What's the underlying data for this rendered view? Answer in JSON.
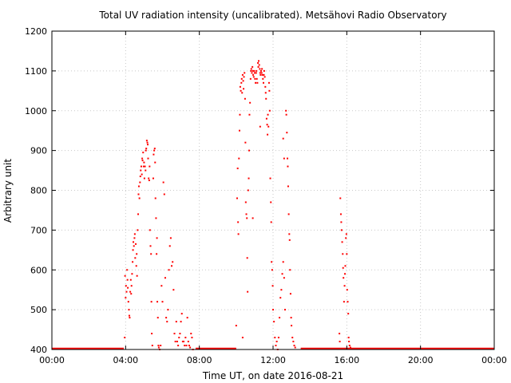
{
  "chart_data": {
    "type": "scatter",
    "title": "Total UV radiation intensity (uncalibrated). Metsähovi Radio Observatory",
    "xlabel": "Time UT, on date 2016-08-21",
    "ylabel": "Arbitrary unit",
    "xlim": [
      0,
      24
    ],
    "ylim": [
      400,
      1200
    ],
    "x_unit": "hours UT",
    "xticks": [
      0,
      4,
      8,
      12,
      16,
      20,
      24
    ],
    "xtick_labels": [
      "00:00",
      "04:00",
      "08:00",
      "12:00",
      "16:00",
      "20:00",
      "00:00"
    ],
    "yticks": [
      400,
      500,
      600,
      700,
      800,
      900,
      1000,
      1100,
      1200
    ],
    "ytick_labels": [
      "400",
      "500",
      "600",
      "700",
      "800",
      "900",
      "1000",
      "1100",
      "1200"
    ],
    "grid": true,
    "color": "#ff0000",
    "baseline": {
      "value": 400,
      "ranges": [
        [
          0,
          3.9
        ],
        [
          7.8,
          10.0
        ],
        [
          13.5,
          24
        ]
      ]
    },
    "points": [
      [
        3.95,
        430
      ],
      [
        3.97,
        585
      ],
      [
        4.0,
        530
      ],
      [
        4.02,
        560
      ],
      [
        4.05,
        545
      ],
      [
        4.08,
        600
      ],
      [
        4.1,
        575
      ],
      [
        4.12,
        555
      ],
      [
        4.15,
        520
      ],
      [
        4.18,
        500
      ],
      [
        4.2,
        485
      ],
      [
        4.22,
        480
      ],
      [
        4.25,
        545
      ],
      [
        4.28,
        575
      ],
      [
        4.3,
        540
      ],
      [
        4.32,
        560
      ],
      [
        4.35,
        590
      ],
      [
        4.38,
        620
      ],
      [
        4.4,
        650
      ],
      [
        4.42,
        670
      ],
      [
        4.45,
        660
      ],
      [
        4.48,
        680
      ],
      [
        4.5,
        690
      ],
      [
        4.52,
        630
      ],
      [
        4.55,
        665
      ],
      [
        4.58,
        610
      ],
      [
        4.6,
        640
      ],
      [
        4.62,
        585
      ],
      [
        4.65,
        700
      ],
      [
        4.68,
        740
      ],
      [
        4.7,
        790
      ],
      [
        4.72,
        810
      ],
      [
        4.75,
        780
      ],
      [
        4.78,
        820
      ],
      [
        4.8,
        835
      ],
      [
        4.82,
        850
      ],
      [
        4.85,
        860
      ],
      [
        4.88,
        840
      ],
      [
        4.9,
        880
      ],
      [
        4.92,
        875
      ],
      [
        4.95,
        895
      ],
      [
        4.98,
        860
      ],
      [
        5.0,
        870
      ],
      [
        5.02,
        830
      ],
      [
        5.05,
        860
      ],
      [
        5.08,
        850
      ],
      [
        5.1,
        900
      ],
      [
        5.12,
        905
      ],
      [
        5.15,
        925
      ],
      [
        5.18,
        920
      ],
      [
        5.2,
        915
      ],
      [
        5.22,
        880
      ],
      [
        5.25,
        830
      ],
      [
        5.28,
        825
      ],
      [
        5.3,
        860
      ],
      [
        5.32,
        700
      ],
      [
        5.35,
        660
      ],
      [
        5.38,
        640
      ],
      [
        5.4,
        520
      ],
      [
        5.42,
        440
      ],
      [
        5.45,
        410
      ],
      [
        5.5,
        830
      ],
      [
        5.52,
        890
      ],
      [
        5.55,
        900
      ],
      [
        5.58,
        905
      ],
      [
        5.6,
        870
      ],
      [
        5.62,
        780
      ],
      [
        5.65,
        730
      ],
      [
        5.68,
        640
      ],
      [
        5.7,
        680
      ],
      [
        5.72,
        520
      ],
      [
        5.75,
        480
      ],
      [
        5.78,
        410
      ],
      [
        5.8,
        405
      ],
      [
        5.85,
        400
      ],
      [
        5.9,
        410
      ],
      [
        5.95,
        560
      ],
      [
        6.0,
        520
      ],
      [
        6.05,
        820
      ],
      [
        6.1,
        790
      ],
      [
        6.15,
        580
      ],
      [
        6.2,
        480
      ],
      [
        6.25,
        470
      ],
      [
        6.3,
        500
      ],
      [
        6.35,
        600
      ],
      [
        6.4,
        660
      ],
      [
        6.45,
        680
      ],
      [
        6.5,
        610
      ],
      [
        6.55,
        620
      ],
      [
        6.6,
        550
      ],
      [
        6.65,
        440
      ],
      [
        6.7,
        420
      ],
      [
        6.75,
        470
      ],
      [
        6.8,
        420
      ],
      [
        6.85,
        410
      ],
      [
        6.9,
        430
      ],
      [
        6.95,
        440
      ],
      [
        7.0,
        470
      ],
      [
        7.05,
        490
      ],
      [
        7.1,
        420
      ],
      [
        7.15,
        420
      ],
      [
        7.2,
        410
      ],
      [
        7.25,
        430
      ],
      [
        7.3,
        410
      ],
      [
        7.35,
        480
      ],
      [
        7.4,
        420
      ],
      [
        7.45,
        410
      ],
      [
        7.5,
        405
      ],
      [
        7.55,
        440
      ],
      [
        7.6,
        430
      ],
      [
        7.65,
        400
      ],
      [
        10.0,
        460
      ],
      [
        10.05,
        780
      ],
      [
        10.08,
        855
      ],
      [
        10.1,
        720
      ],
      [
        10.12,
        690
      ],
      [
        10.15,
        880
      ],
      [
        10.18,
        950
      ],
      [
        10.2,
        990
      ],
      [
        10.22,
        1060
      ],
      [
        10.25,
        1050
      ],
      [
        10.28,
        1070
      ],
      [
        10.3,
        1080
      ],
      [
        10.32,
        1045
      ],
      [
        10.35,
        1090
      ],
      [
        10.38,
        1075
      ],
      [
        10.4,
        1055
      ],
      [
        10.42,
        1085
      ],
      [
        10.45,
        1095
      ],
      [
        10.48,
        1030
      ],
      [
        10.5,
        920
      ],
      [
        10.52,
        770
      ],
      [
        10.55,
        740
      ],
      [
        10.58,
        730
      ],
      [
        10.6,
        630
      ],
      [
        10.62,
        545
      ],
      [
        10.65,
        800
      ],
      [
        10.68,
        830
      ],
      [
        10.7,
        900
      ],
      [
        10.72,
        990
      ],
      [
        10.75,
        1020
      ],
      [
        10.78,
        1080
      ],
      [
        10.8,
        1100
      ],
      [
        10.82,
        1105
      ],
      [
        10.85,
        1095
      ],
      [
        10.88,
        1110
      ],
      [
        10.9,
        1100
      ],
      [
        10.92,
        1090
      ],
      [
        10.95,
        1085
      ],
      [
        10.98,
        1100
      ],
      [
        11.0,
        1095
      ],
      [
        11.02,
        1080
      ],
      [
        11.05,
        1070
      ],
      [
        11.08,
        1095
      ],
      [
        11.1,
        1100
      ],
      [
        11.12,
        1080
      ],
      [
        11.15,
        1070
      ],
      [
        11.18,
        1120
      ],
      [
        11.2,
        1110
      ],
      [
        11.22,
        1125
      ],
      [
        11.25,
        1115
      ],
      [
        11.28,
        1105
      ],
      [
        11.3,
        1095
      ],
      [
        11.32,
        1090
      ],
      [
        11.35,
        1100
      ],
      [
        11.38,
        1095
      ],
      [
        11.4,
        1105
      ],
      [
        11.42,
        1090
      ],
      [
        11.45,
        1080
      ],
      [
        11.48,
        1070
      ],
      [
        11.5,
        1090
      ],
      [
        11.52,
        1100
      ],
      [
        11.55,
        1085
      ],
      [
        11.58,
        1060
      ],
      [
        11.6,
        1045
      ],
      [
        11.62,
        1030
      ],
      [
        11.65,
        980
      ],
      [
        11.68,
        965
      ],
      [
        11.7,
        940
      ],
      [
        11.72,
        990
      ],
      [
        11.75,
        960
      ],
      [
        11.78,
        1070
      ],
      [
        11.8,
        1050
      ],
      [
        11.82,
        1000
      ],
      [
        11.85,
        830
      ],
      [
        11.88,
        770
      ],
      [
        11.9,
        720
      ],
      [
        11.92,
        620
      ],
      [
        11.95,
        600
      ],
      [
        11.98,
        560
      ],
      [
        12.0,
        500
      ],
      [
        12.05,
        470
      ],
      [
        12.1,
        430
      ],
      [
        12.15,
        410
      ],
      [
        12.2,
        420
      ],
      [
        12.25,
        400
      ],
      [
        12.3,
        430
      ],
      [
        12.35,
        480
      ],
      [
        12.4,
        530
      ],
      [
        12.45,
        550
      ],
      [
        12.5,
        590
      ],
      [
        12.55,
        620
      ],
      [
        12.6,
        580
      ],
      [
        12.65,
        500
      ],
      [
        12.7,
        1000
      ],
      [
        12.72,
        990
      ],
      [
        12.75,
        945
      ],
      [
        12.78,
        880
      ],
      [
        12.8,
        860
      ],
      [
        12.82,
        810
      ],
      [
        12.85,
        740
      ],
      [
        12.88,
        690
      ],
      [
        12.9,
        675
      ],
      [
        12.92,
        600
      ],
      [
        12.95,
        540
      ],
      [
        12.98,
        480
      ],
      [
        13.0,
        460
      ],
      [
        13.05,
        430
      ],
      [
        13.1,
        420
      ],
      [
        13.15,
        410
      ],
      [
        13.2,
        405
      ],
      [
        10.35,
        430
      ],
      [
        10.9,
        730
      ],
      [
        11.3,
        960
      ],
      [
        12.55,
        930
      ],
      [
        12.6,
        880
      ],
      [
        15.6,
        440
      ],
      [
        15.62,
        420
      ],
      [
        15.65,
        780
      ],
      [
        15.68,
        740
      ],
      [
        15.7,
        720
      ],
      [
        15.72,
        700
      ],
      [
        15.75,
        670
      ],
      [
        15.78,
        640
      ],
      [
        15.8,
        605
      ],
      [
        15.82,
        580
      ],
      [
        15.85,
        520
      ],
      [
        15.88,
        560
      ],
      [
        15.9,
        590
      ],
      [
        15.92,
        610
      ],
      [
        15.95,
        680
      ],
      [
        15.98,
        690
      ],
      [
        16.0,
        640
      ],
      [
        16.02,
        550
      ],
      [
        16.05,
        520
      ],
      [
        16.08,
        490
      ],
      [
        16.1,
        430
      ],
      [
        16.12,
        420
      ],
      [
        16.15,
        410
      ],
      [
        16.2,
        405
      ]
    ]
  }
}
